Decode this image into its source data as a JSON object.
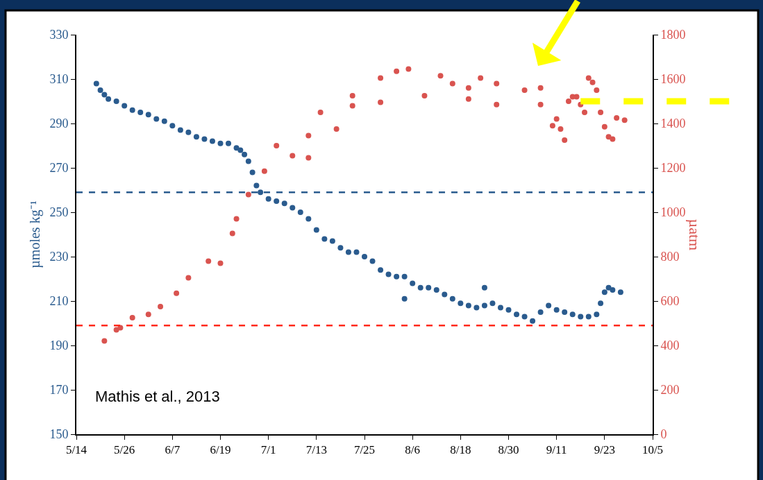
{
  "chart_data": {
    "type": "scatter",
    "ylabel": "µmoles kg⁻¹",
    "y2label": "µatm",
    "annotations": [
      "Mathis et al., 2013"
    ],
    "xlim": [
      "--05-14",
      "--10-05"
    ],
    "xticks": [
      {
        "value": "--05-14",
        "label": "5/14"
      },
      {
        "value": "--05-26",
        "label": "5/26"
      },
      {
        "value": "--06-07",
        "label": "6/7"
      },
      {
        "value": "--06-19",
        "label": "6/19"
      },
      {
        "value": "--07-01",
        "label": "7/1"
      },
      {
        "value": "--07-13",
        "label": "7/13"
      },
      {
        "value": "--07-25",
        "label": "7/25"
      },
      {
        "value": "--08-06",
        "label": "8/6"
      },
      {
        "value": "--08-18",
        "label": "8/18"
      },
      {
        "value": "--08-30",
        "label": "8/30"
      },
      {
        "value": "--09-11",
        "label": "9/11"
      },
      {
        "value": "--09-23",
        "label": "9/23"
      },
      {
        "value": "--10-05",
        "label": "10/5"
      }
    ],
    "ylim": [
      150,
      330
    ],
    "yticks": [
      150,
      170,
      190,
      210,
      230,
      250,
      270,
      290,
      310,
      330
    ],
    "y2lim": [
      0,
      1800
    ],
    "y2ticks": [
      0,
      200,
      400,
      600,
      800,
      1000,
      1200,
      1400,
      1600,
      1800
    ],
    "marker": "circle",
    "series": [
      {
        "color": "#2a5b8e",
        "x": [
          "--05-19",
          "--05-20",
          "--05-21",
          "--05-22",
          "--05-24",
          "--05-26",
          "--05-28",
          "--05-30",
          "--06-01",
          "--06-03",
          "--06-05",
          "--06-07",
          "--06-09",
          "--06-11",
          "--06-13",
          "--06-15",
          "--06-17",
          "--06-19",
          "--06-21",
          "--06-23",
          "--06-24",
          "--06-25",
          "--06-26",
          "--06-27",
          "--06-28",
          "--06-29",
          "--07-01",
          "--07-03",
          "--07-05",
          "--07-07",
          "--07-09",
          "--07-11",
          "--07-13",
          "--07-15",
          "--07-17",
          "--07-19",
          "--07-21",
          "--07-23",
          "--07-25",
          "--07-27",
          "--07-29",
          "--07-31",
          "--08-02",
          "--08-04",
          "--08-04",
          "--08-06",
          "--08-08",
          "--08-10",
          "--08-12",
          "--08-14",
          "--08-16",
          "--08-18",
          "--08-20",
          "--08-22",
          "--08-24",
          "--08-24",
          "--08-26",
          "--08-28",
          "--08-30",
          "--09-01",
          "--09-03",
          "--09-05",
          "--09-07",
          "--09-09",
          "--09-11",
          "--09-13",
          "--09-15",
          "--09-17",
          "--09-19",
          "--09-21",
          "--09-22",
          "--09-23",
          "--09-24",
          "--09-25",
          "--09-27"
        ],
        "values": [
          308,
          305,
          303,
          301,
          300,
          298,
          296,
          295,
          294,
          292,
          291,
          289,
          287,
          286,
          284,
          283,
          282,
          281,
          281,
          279,
          278,
          276,
          273,
          268,
          262,
          259,
          256,
          255,
          254,
          252,
          250,
          247,
          242,
          238,
          237,
          234,
          232,
          232,
          230,
          228,
          224,
          222,
          221,
          221,
          211,
          218,
          216,
          216,
          215,
          213,
          211,
          209,
          208,
          207,
          208,
          216,
          209,
          207,
          206,
          204,
          203,
          201,
          205,
          208,
          206,
          205,
          204,
          203,
          203,
          204,
          209,
          214,
          216,
          215,
          214
        ]
      },
      {
        "color": "#d9534f",
        "axis": "y2",
        "x": [
          "--05-21",
          "--05-24",
          "--05-25",
          "--05-28",
          "--06-01",
          "--06-04",
          "--06-08",
          "--06-11",
          "--06-16",
          "--06-19",
          "--06-22",
          "--06-23",
          "--06-26",
          "--06-30",
          "--07-03",
          "--07-07",
          "--07-11",
          "--07-11",
          "--07-14",
          "--07-18",
          "--07-22",
          "--07-22",
          "--07-29",
          "--07-29",
          "--08-02",
          "--08-05",
          "--08-09",
          "--08-13",
          "--08-16",
          "--08-20",
          "--08-20",
          "--08-23",
          "--08-27",
          "--08-27",
          "--09-03",
          "--09-07",
          "--09-07",
          "--09-10",
          "--09-11",
          "--09-12",
          "--09-13",
          "--09-14",
          "--09-15",
          "--09-16",
          "--09-17",
          "--09-18",
          "--09-19",
          "--09-20",
          "--09-21",
          "--09-22",
          "--09-23",
          "--09-24",
          "--09-25",
          "--09-26",
          "--09-28"
        ],
        "values": [
          420,
          470,
          480,
          525,
          540,
          575,
          635,
          705,
          780,
          770,
          905,
          970,
          1080,
          1185,
          1300,
          1255,
          1345,
          1245,
          1450,
          1375,
          1480,
          1525,
          1605,
          1495,
          1635,
          1645,
          1525,
          1615,
          1580,
          1560,
          1510,
          1605,
          1580,
          1485,
          1550,
          1560,
          1485,
          1390,
          1420,
          1375,
          1325,
          1500,
          1520,
          1520,
          1485,
          1450,
          1605,
          1585,
          1550,
          1450,
          1385,
          1340,
          1330,
          1425,
          1415
        ]
      }
    ],
    "ref_lines": [
      {
        "axis": "y",
        "value": 259,
        "color": "#2a5b8e",
        "line_style": "dashed"
      },
      {
        "axis": "y2",
        "value": 490,
        "color": "#ff2a1a",
        "line_style": "dashed"
      },
      {
        "axis": "y2",
        "value": 1500,
        "color": "#ffff00",
        "line_style": "dashed"
      }
    ]
  }
}
